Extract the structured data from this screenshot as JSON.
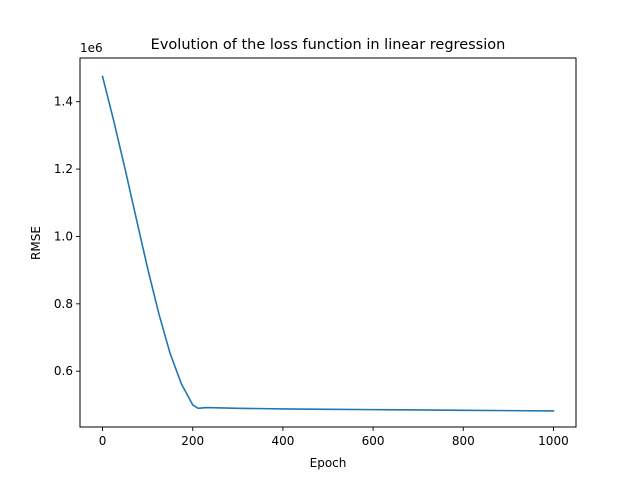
{
  "chart_data": {
    "type": "line",
    "title": "Evolution of the loss function in linear regression",
    "xlabel": "Epoch",
    "ylabel": "RMSE",
    "y_offset_label": "1e6",
    "xlim": [
      -50,
      1050
    ],
    "ylim": [
      0.4344,
      1.5297
    ],
    "x_ticks": [
      {
        "value": 0,
        "label": "0"
      },
      {
        "value": 200,
        "label": "200"
      },
      {
        "value": 400,
        "label": "400"
      },
      {
        "value": 600,
        "label": "600"
      },
      {
        "value": 800,
        "label": "800"
      },
      {
        "value": 1000,
        "label": "1000"
      }
    ],
    "y_ticks": [
      {
        "value": 0.6,
        "label": "0.6"
      },
      {
        "value": 0.8,
        "label": "0.8"
      },
      {
        "value": 1.0,
        "label": "1.0"
      },
      {
        "value": 1.2,
        "label": "1.2"
      },
      {
        "value": 1.4,
        "label": "1.4"
      }
    ],
    "grid": false,
    "legend": "none",
    "series": [
      {
        "color": "#1f77b4",
        "x": [
          0,
          25,
          50,
          75,
          100,
          125,
          150,
          175,
          200,
          212,
          230,
          300,
          400,
          500,
          600,
          700,
          800,
          900,
          1000
        ],
        "y": [
          1.475,
          1.342,
          1.2,
          1.052,
          0.905,
          0.77,
          0.652,
          0.562,
          0.5,
          0.49,
          0.492,
          0.49,
          0.488,
          0.487,
          0.486,
          0.485,
          0.484,
          0.483,
          0.482
        ]
      }
    ]
  }
}
